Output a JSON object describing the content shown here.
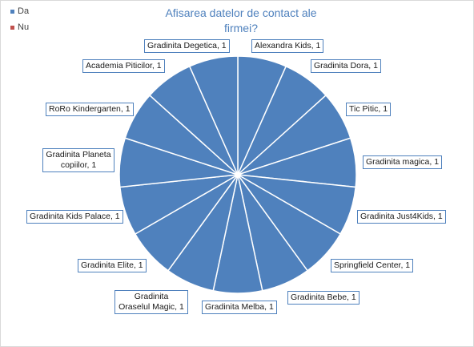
{
  "chart_data": {
    "type": "pie",
    "title": "Afisarea datelor de contact ale firmei?",
    "legend": {
      "placement": "top-left",
      "entries": [
        {
          "name": "Da",
          "color": "#4f81bd"
        },
        {
          "name": "Nu",
          "color": "#c0504d"
        }
      ]
    },
    "slice_color": "#4f81bd",
    "separator_color": "#ffffff",
    "slices": [
      {
        "label": "Alexandra Kids, 1",
        "value": 1
      },
      {
        "label": "Gradinita Dora, 1",
        "value": 1
      },
      {
        "label": "Tic Pitic, 1",
        "value": 1
      },
      {
        "label": "Gradinita magica, 1",
        "value": 1
      },
      {
        "label": "Gradinita Just4Kids, 1",
        "value": 1
      },
      {
        "label": "Springfield Center, 1",
        "value": 1
      },
      {
        "label": "Gradinita Bebe, 1",
        "value": 1
      },
      {
        "label": "Gradinita Melba, 1",
        "value": 1
      },
      {
        "label": "Gradinita Oraselul Magic, 1",
        "value": 1
      },
      {
        "label": "Gradinita Elite, 1",
        "value": 1
      },
      {
        "label": "Gradinita Kids Palace, 1",
        "value": 1
      },
      {
        "label": "Gradinita Planeta copiilor, 1",
        "value": 1
      },
      {
        "label": "RoRo Kindergarten, 1",
        "value": 1
      },
      {
        "label": "Academia Piticilor, 1",
        "value": 1
      },
      {
        "label": "Gradinita Degetica, 1",
        "value": 1
      }
    ]
  }
}
